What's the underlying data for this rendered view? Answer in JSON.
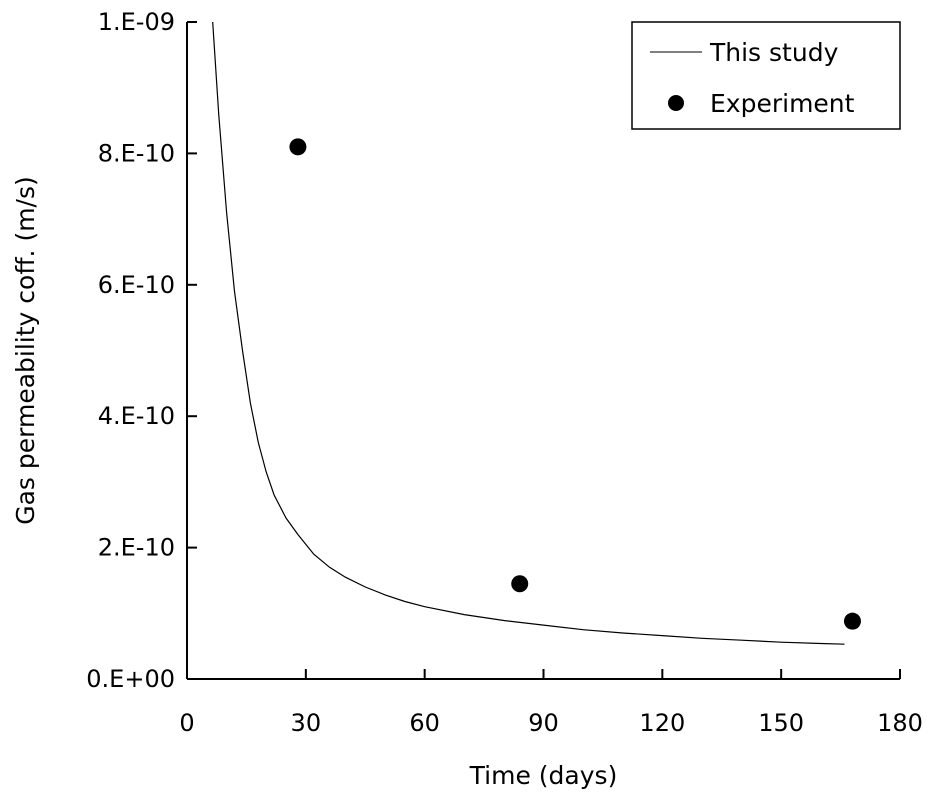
{
  "chart_data": {
    "type": "scatter",
    "xlabel": "Time (days)",
    "ylabel": "Gas permeability coff. (m/s)",
    "xlim": [
      0,
      180
    ],
    "ylim": [
      0,
      1e-09
    ],
    "x_ticks": [
      0,
      30,
      60,
      90,
      120,
      150,
      180
    ],
    "x_tick_labels": [
      "0",
      "30",
      "60",
      "90",
      "120",
      "150",
      "180"
    ],
    "y_ticks": [
      0,
      2e-10,
      4e-10,
      6e-10,
      8e-10,
      1e-09
    ],
    "y_tick_labels": [
      "0.E+00",
      "2.E-10",
      "4.E-10",
      "6.E-10",
      "8.E-10",
      "1.E-09"
    ],
    "grid": false,
    "legend_position": "top-right",
    "series": [
      {
        "name": "This study",
        "kind": "line",
        "color": "#000000",
        "x": [
          6.5,
          8,
          10,
          12,
          14,
          16,
          18,
          20,
          22,
          25,
          28,
          32,
          36,
          40,
          45,
          50,
          55,
          60,
          70,
          80,
          90,
          100,
          110,
          120,
          130,
          140,
          150,
          160,
          166
        ],
        "y": [
          1e-09,
          8.6e-10,
          7.1e-10,
          5.9e-10,
          5e-10,
          4.2e-10,
          3.6e-10,
          3.15e-10,
          2.8e-10,
          2.45e-10,
          2.2e-10,
          1.9e-10,
          1.7e-10,
          1.55e-10,
          1.4e-10,
          1.28e-10,
          1.18e-10,
          1.1e-10,
          9.8e-11,
          8.9e-11,
          8.2e-11,
          7.5e-11,
          7e-11,
          6.6e-11,
          6.2e-11,
          5.9e-11,
          5.6e-11,
          5.4e-11,
          5.3e-11
        ]
      },
      {
        "name": "Experiment",
        "kind": "scatter",
        "color": "#000000",
        "x": [
          28,
          84,
          168
        ],
        "y": [
          8.1e-10,
          1.45e-10,
          8.8e-11
        ]
      }
    ]
  }
}
